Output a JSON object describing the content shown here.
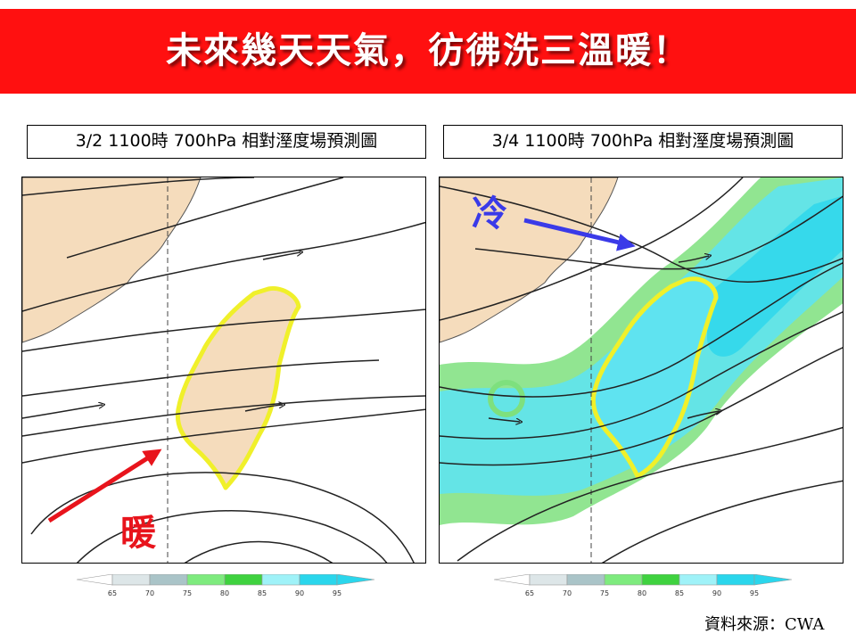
{
  "banner": {
    "title": "未來幾天天氣，彷彿洗三溫暖！",
    "color": "#ff1010"
  },
  "maps": [
    {
      "label": "3/2  1100時   700hPa 相對溼度場預測圖",
      "annotation": "暖",
      "annotation_color": "#e8141c",
      "arrow_color": "#e8141c"
    },
    {
      "label": "3/4  1100時   700hPa 相對溼度場預測圖",
      "annotation": "冷",
      "annotation_color": "#3a3ae8",
      "arrow_color": "#3a3ae8"
    }
  ],
  "colorbar": {
    "ticks": [
      "65",
      "70",
      "75",
      "80",
      "85",
      "90",
      "95"
    ],
    "colors": [
      "#dde6e8",
      "#aac4c8",
      "#7eeb7e",
      "#3fd23f",
      "#9ff2f8",
      "#2ad6ec"
    ]
  },
  "colors": {
    "land": "#f5dcbc",
    "taiwan_outline": "#f0f02a",
    "humid_green": "#7ee07e",
    "humid_cyan": "#5fe3f0"
  },
  "source": "資料來源：CWA"
}
